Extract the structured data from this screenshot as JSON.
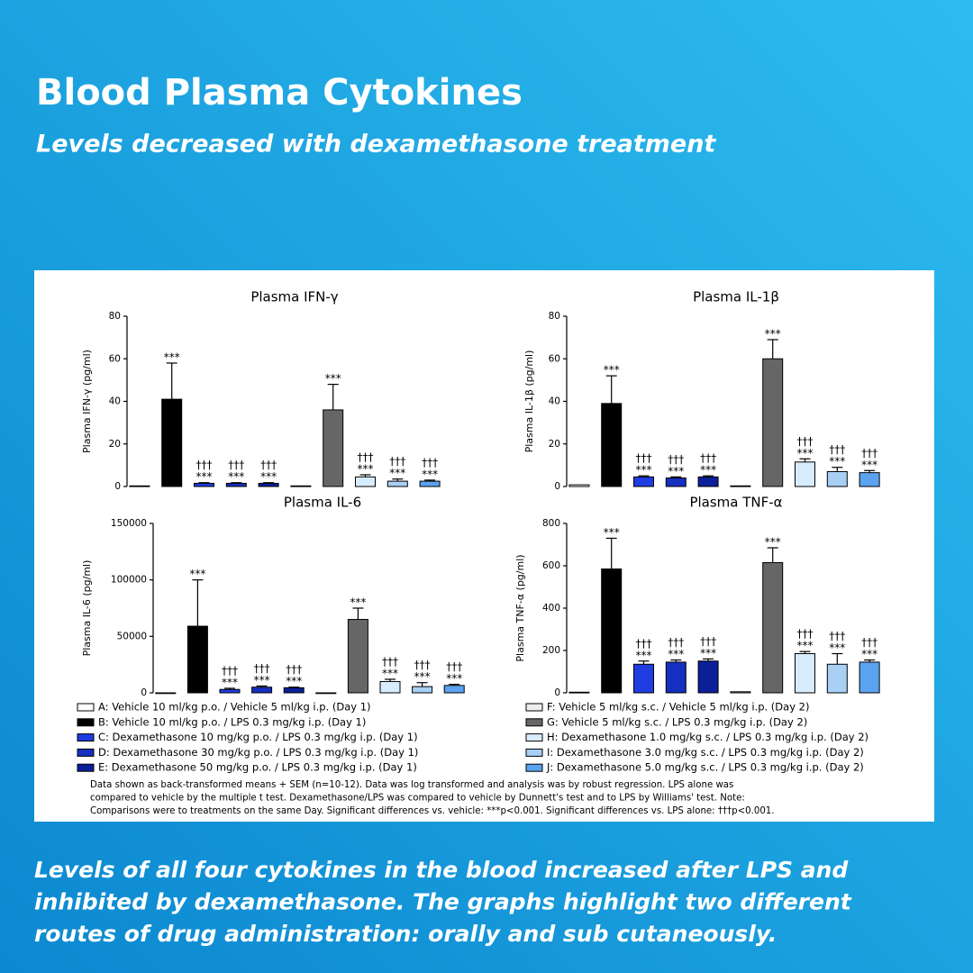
{
  "header": {
    "title": "Blood Plasma Cytokines",
    "subtitle": "Levels decreased with dexamethasone treatment"
  },
  "chart_data": [
    {
      "type": "bar",
      "title": "Plasma IFN-γ",
      "ylabel": "Plasma IFN-γ (pg/ml)",
      "ylim": [
        0,
        80
      ],
      "yticks": [
        0,
        20,
        40,
        60,
        80
      ],
      "values": [
        0.3,
        41,
        1.5,
        1.5,
        1.5,
        0.3,
        36,
        4.5,
        2.5,
        2.5
      ],
      "errors": [
        0,
        17,
        0.3,
        0.3,
        0.3,
        0,
        12,
        1,
        1,
        0.5
      ],
      "marks_vs_vehicle": [
        null,
        "***",
        "***",
        "***",
        "***",
        null,
        "***",
        "***",
        "***",
        "***"
      ],
      "marks_vs_lps": [
        null,
        null,
        "†††",
        "†††",
        "†††",
        null,
        null,
        "†††",
        "†††",
        "†††"
      ]
    },
    {
      "type": "bar",
      "title": "Plasma IL-1β",
      "ylabel": "Plasma IL-1β (pg/ml)",
      "ylim": [
        0,
        80
      ],
      "yticks": [
        0,
        20,
        40,
        60,
        80
      ],
      "values": [
        0.8,
        39,
        4.5,
        4,
        4.5,
        0.3,
        60,
        11.5,
        7,
        6.5
      ],
      "errors": [
        0,
        13,
        0.5,
        0.5,
        0.5,
        0,
        9,
        1.5,
        2,
        1
      ],
      "marks_vs_vehicle": [
        null,
        "***",
        "***",
        "***",
        "***",
        null,
        "***",
        "***",
        "***",
        "***"
      ],
      "marks_vs_lps": [
        null,
        null,
        "†††",
        "†††",
        "†††",
        null,
        null,
        "†††",
        "†††",
        "†††"
      ]
    },
    {
      "type": "bar",
      "title": "Plasma IL-6",
      "ylabel": "Plasma IL-6 (pg/ml)",
      "ylim": [
        0,
        150000
      ],
      "yticks": [
        0,
        50000,
        100000,
        150000
      ],
      "values": [
        0,
        59000,
        3000,
        5000,
        4500,
        0,
        65000,
        10000,
        5500,
        6500
      ],
      "errors": [
        0,
        41000,
        1000,
        1000,
        500,
        0,
        10000,
        2000,
        3500,
        1000
      ],
      "marks_vs_vehicle": [
        null,
        "***",
        "***",
        "***",
        "***",
        null,
        "***",
        "***",
        "***",
        "***"
      ],
      "marks_vs_lps": [
        null,
        null,
        "†††",
        "†††",
        "†††",
        null,
        null,
        "†††",
        "†††",
        "†††"
      ]
    },
    {
      "type": "bar",
      "title": "Plasma TNF-α",
      "ylabel": "Plasma TNF-α (pg/ml)",
      "ylim": [
        0,
        800
      ],
      "yticks": [
        0,
        200,
        400,
        600,
        800
      ],
      "values": [
        3,
        585,
        135,
        145,
        150,
        5,
        615,
        185,
        135,
        145
      ],
      "errors": [
        0,
        145,
        15,
        10,
        10,
        0,
        70,
        10,
        50,
        10
      ],
      "marks_vs_vehicle": [
        null,
        "***",
        "***",
        "***",
        "***",
        null,
        "***",
        "***",
        "***",
        "***"
      ],
      "marks_vs_lps": [
        null,
        null,
        "†††",
        "†††",
        "†††",
        null,
        null,
        "†††",
        "†††",
        "†††"
      ]
    }
  ],
  "legend": [
    {
      "label": "A: Vehicle 10 ml/kg p.o. / Vehicle 5 ml/kg i.p. (Day 1)",
      "color": "#ffffff"
    },
    {
      "label": "B: Vehicle 10 ml/kg p.o. / LPS 0.3 mg/kg i.p. (Day 1)",
      "color": "#000000"
    },
    {
      "label": "C: Dexamethasone 10 mg/kg p.o. / LPS 0.3 mg/kg i.p. (Day 1)",
      "color": "#1f3de0"
    },
    {
      "label": "D: Dexamethasone 30 mg/kg p.o. / LPS 0.3 mg/kg i.p. (Day 1)",
      "color": "#1530c0"
    },
    {
      "label": "E: Dexamethasone 50 mg/kg p.o. / LPS 0.3 mg/kg i.p. (Day 1)",
      "color": "#0b1f99"
    },
    {
      "label": "F: Vehicle 5 ml/kg s.c. / Vehicle 5 ml/kg i.p. (Day 2)",
      "color": "#eeeeee"
    },
    {
      "label": "G: Vehicle 5 ml/kg s.c. / LPS 0.3 mg/kg i.p. (Day 2)",
      "color": "#666666"
    },
    {
      "label": "H: Dexamethasone 1.0 mg/kg s.c. / LPS 0.3 mg/kg i.p. (Day 2)",
      "color": "#d8ecff"
    },
    {
      "label": "I: Dexamethasone 3.0 mg/kg s.c. / LPS 0.3 mg/kg i.p. (Day 2)",
      "color": "#a8d0f5"
    },
    {
      "label": "J: Dexamethasone 5.0 mg/kg s.c. / LPS 0.3 mg/kg i.p. (Day 2)",
      "color": "#5ba3f0"
    }
  ],
  "footnote": [
    "Data shown as back-transformed means + SEM (n=10-12). Data was log transformed and analysis was by robust regression. LPS alone was",
    "compared to vehicle by the multiple t test. Dexamethasone/LPS was compared to vehicle by Dunnett's test and to LPS by Williams' test. Note:",
    "Comparisons were to treatments on the same Day. Significant differences vs. vehicle: ***p<0.001. Significant differences vs. LPS alone: †††p<0.001."
  ],
  "caption": [
    "Levels of all four cytokines in the blood increased after LPS and",
    "inhibited by dexamethasone. The graphs highlight two different",
    "routes of drug administration: orally and sub cutaneously."
  ]
}
